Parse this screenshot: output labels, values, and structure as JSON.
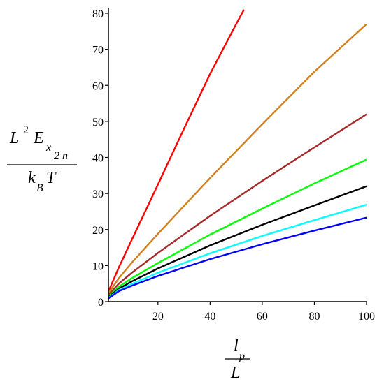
{
  "chart_data": {
    "type": "line",
    "title": "",
    "xlabel": {
      "numerator": "l",
      "numerator_sub": "p",
      "denominator": "L"
    },
    "ylabel": {
      "numerator_base": "L",
      "numerator_sup": "2",
      "numerator_sym": "E",
      "numerator_sub": "x",
      "numerator_subsub": "2 n",
      "denominator_base": "k",
      "denominator_sub": "B",
      "denominator_sym": "T"
    },
    "xlim": [
      1,
      100
    ],
    "ylim": [
      0,
      80
    ],
    "x_ticks": [
      20,
      40,
      60,
      80,
      100
    ],
    "y_ticks": [
      0,
      10,
      20,
      30,
      40,
      50,
      60,
      70,
      80
    ],
    "grid": false,
    "legend": "none",
    "series": [
      {
        "color": "#ff0000",
        "x": [
          1,
          5,
          10,
          20,
          30,
          40,
          50,
          53
        ],
        "y": [
          2.8,
          9.5,
          17.2,
          32.5,
          48,
          63.2,
          77,
          81
        ]
      },
      {
        "color": "#d2801e",
        "x": [
          1,
          5,
          10,
          20,
          40,
          60,
          80,
          100
        ],
        "y": [
          2.3,
          6.5,
          10.8,
          18.8,
          34.3,
          49.2,
          63.8,
          77
        ]
      },
      {
        "color": "#a52a2a",
        "x": [
          1,
          5,
          10,
          20,
          40,
          60,
          80,
          100
        ],
        "y": [
          1.8,
          5.0,
          8.0,
          13.5,
          23.8,
          33.5,
          42.8,
          52
        ]
      },
      {
        "color": "#00ff00",
        "x": [
          1,
          5,
          10,
          20,
          40,
          60,
          80,
          100
        ],
        "y": [
          1.4,
          4.1,
          6.5,
          10.7,
          18.6,
          25.8,
          32.8,
          39.4
        ]
      },
      {
        "color": "#000000",
        "x": [
          1,
          5,
          10,
          20,
          40,
          60,
          80,
          100
        ],
        "y": [
          1.2,
          3.6,
          5.6,
          9.2,
          15.6,
          21.3,
          26.7,
          32
        ]
      },
      {
        "color": "#00ffff",
        "x": [
          1,
          5,
          10,
          20,
          40,
          60,
          80,
          100
        ],
        "y": [
          1.0,
          3.2,
          4.9,
          8.0,
          13.4,
          18.2,
          22.6,
          26.9
        ]
      },
      {
        "color": "#0000ff",
        "x": [
          1,
          5,
          10,
          20,
          40,
          60,
          80,
          100
        ],
        "y": [
          0.9,
          2.9,
          4.4,
          7.1,
          11.8,
          15.9,
          19.7,
          23.3
        ]
      }
    ]
  }
}
